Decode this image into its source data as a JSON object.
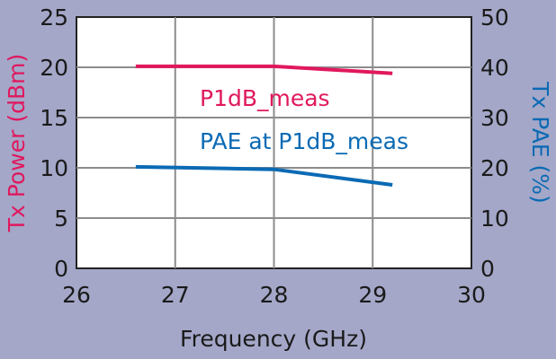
{
  "chart_data": {
    "type": "line",
    "xlabel": "Frequency (GHz)",
    "ylabel_left": "Tx Power (dBm)",
    "ylabel_right": "Tx PAE (%)",
    "xlim": [
      26,
      30
    ],
    "ylim_left": [
      0,
      25
    ],
    "ylim_right": [
      0,
      50
    ],
    "x_ticks": [
      26,
      27,
      28,
      29,
      30
    ],
    "y_left_ticks": [
      0,
      5,
      10,
      15,
      20,
      25
    ],
    "y_right_ticks": [
      0,
      10,
      20,
      30,
      40,
      50
    ],
    "grid": true,
    "series": [
      {
        "name": "P1dB_meas",
        "axis": "left",
        "color": "#e0185e",
        "x": [
          26.6,
          28.0,
          29.2
        ],
        "y": [
          20.1,
          20.1,
          19.4
        ]
      },
      {
        "name": "PAE at P1dB_meas",
        "axis": "right",
        "color": "#0a6ab4",
        "x": [
          26.6,
          28.0,
          29.2
        ],
        "y": [
          20.2,
          19.7,
          16.6
        ]
      }
    ]
  }
}
